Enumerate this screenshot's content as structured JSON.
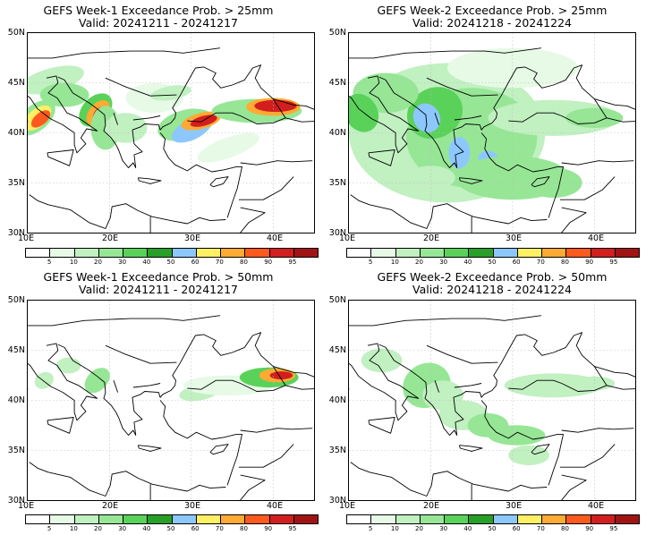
{
  "palette": {
    "colors": [
      "#ffffff",
      "#e6fae6",
      "#c1f0c1",
      "#96e696",
      "#5ad25a",
      "#28a028",
      "#8cc8ff",
      "#fff064",
      "#ffaa32",
      "#ff5a1e",
      "#d21e1e",
      "#a01414"
    ],
    "labels": [
      "5",
      "10",
      "20",
      "30",
      "40",
      "50",
      "60",
      "70",
      "80",
      "90",
      "95"
    ]
  },
  "axes": {
    "lat_labels": [
      "50N",
      "45N",
      "40N",
      "35N",
      "30N"
    ],
    "lon_labels": [
      "10E",
      "20E",
      "30E",
      "40E"
    ]
  },
  "panels": [
    {
      "title": "GEFS Week-1 Exceedance Prob. > 25mm",
      "valid": "Valid: 20241211 - 20241217"
    },
    {
      "title": "GEFS Week-2 Exceedance Prob. > 25mm",
      "valid": "Valid: 20241218 - 20241224"
    },
    {
      "title": "GEFS Week-1 Exceedance Prob. > 50mm",
      "valid": "Valid: 20241211 - 20241217"
    },
    {
      "title": "GEFS Week-2 Exceedance Prob. > 50mm",
      "valid": "Valid: 20241218 - 20241224"
    }
  ]
}
